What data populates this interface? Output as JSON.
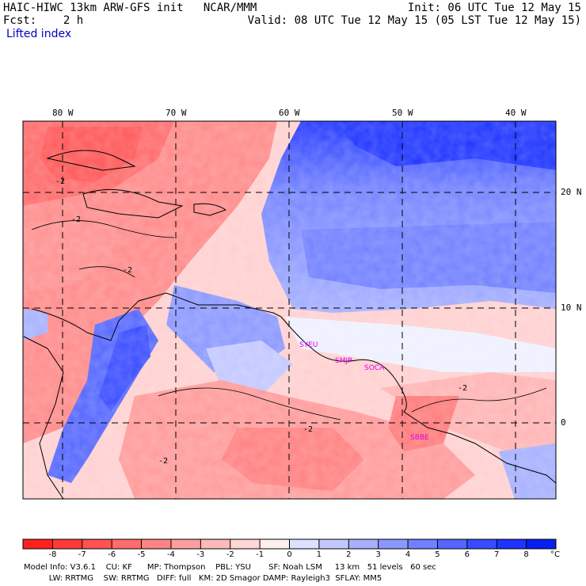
{
  "header": {
    "title": "HAIC-HIWC 13km ARW-GFS init   NCAR/MMM",
    "fcst": "Fcst:    2 h",
    "field": "Lifted index",
    "init": "Init: 06 UTC Tue 12 May 15",
    "valid": "Valid: 08 UTC Tue 12 May 15 (05 LST Tue 12 May 15)"
  },
  "axes": {
    "lon_labels": [
      "80 W",
      "70 W",
      "60 W",
      "50 W",
      "40 W"
    ],
    "lat_labels": [
      "20 N",
      "10 N",
      "0"
    ]
  },
  "stations": [
    "SYEU",
    "SMJP",
    "SOCA",
    "SBBE"
  ],
  "contour_labels": [
    "-2"
  ],
  "colorbar": {
    "ticks": [
      "-8",
      "-7",
      "-6",
      "-5",
      "-4",
      "-3",
      "-2",
      "-1",
      "0",
      "1",
      "2",
      "3",
      "4",
      "5",
      "6",
      "7",
      "8"
    ],
    "unit": "°C",
    "colors": [
      "#ff2020",
      "#ff3a3a",
      "#ff5252",
      "#ff6a6a",
      "#ff8383",
      "#ff9e9e",
      "#ffb9b9",
      "#ffd6d6",
      "#fff0f0",
      "#dde0ff",
      "#c2c8ff",
      "#a6b0ff",
      "#8b98ff",
      "#7080ff",
      "#5466ff",
      "#384cff",
      "#1e34ff",
      "#0a1ef0"
    ]
  },
  "footer": {
    "line1": "Model Info: V3.6.1    CU: KF      MP: Thompson    PBL: YSU       SF: Noah LSM     13 km   51 levels   60 sec",
    "line2": "          LW: RRTMG    SW: RRTMG   DIFF: full   KM: 2D Smagor DAMP: Rayleigh3  SFLAY: MM5"
  }
}
